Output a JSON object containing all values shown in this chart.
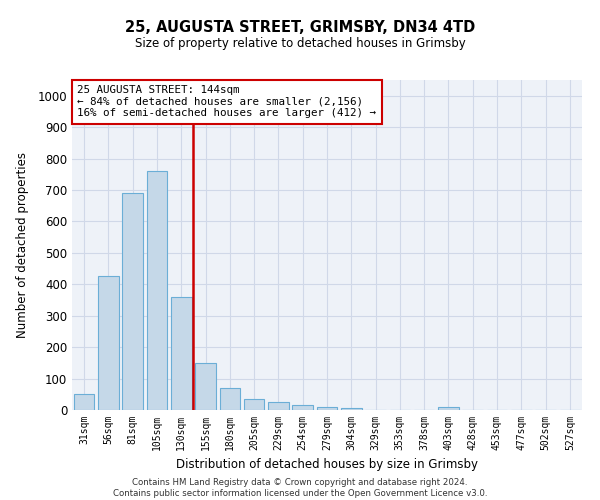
{
  "title": "25, AUGUSTA STREET, GRIMSBY, DN34 4TD",
  "subtitle": "Size of property relative to detached houses in Grimsby",
  "xlabel": "Distribution of detached houses by size in Grimsby",
  "ylabel": "Number of detached properties",
  "categories": [
    "31sqm",
    "56sqm",
    "81sqm",
    "105sqm",
    "130sqm",
    "155sqm",
    "180sqm",
    "205sqm",
    "229sqm",
    "254sqm",
    "279sqm",
    "304sqm",
    "329sqm",
    "353sqm",
    "378sqm",
    "403sqm",
    "428sqm",
    "453sqm",
    "477sqm",
    "502sqm",
    "527sqm"
  ],
  "values": [
    50,
    425,
    690,
    760,
    360,
    150,
    70,
    35,
    25,
    15,
    10,
    5,
    0,
    0,
    0,
    8,
    0,
    0,
    0,
    0,
    0
  ],
  "bar_color": "#c5d8e8",
  "bar_edge_color": "#6baed6",
  "vline_x_index": 4.5,
  "vline_color": "#cc0000",
  "annotation_line1": "25 AUGUSTA STREET: 144sqm",
  "annotation_line2": "← 84% of detached houses are smaller (2,156)",
  "annotation_line3": "16% of semi-detached houses are larger (412) →",
  "annotation_box_color": "#ffffff",
  "annotation_box_edge": "#cc0000",
  "ylim": [
    0,
    1050
  ],
  "yticks": [
    0,
    100,
    200,
    300,
    400,
    500,
    600,
    700,
    800,
    900,
    1000
  ],
  "grid_color": "#d0d8e8",
  "background_color": "#eef2f8",
  "footer_line1": "Contains HM Land Registry data © Crown copyright and database right 2024.",
  "footer_line2": "Contains public sector information licensed under the Open Government Licence v3.0."
}
